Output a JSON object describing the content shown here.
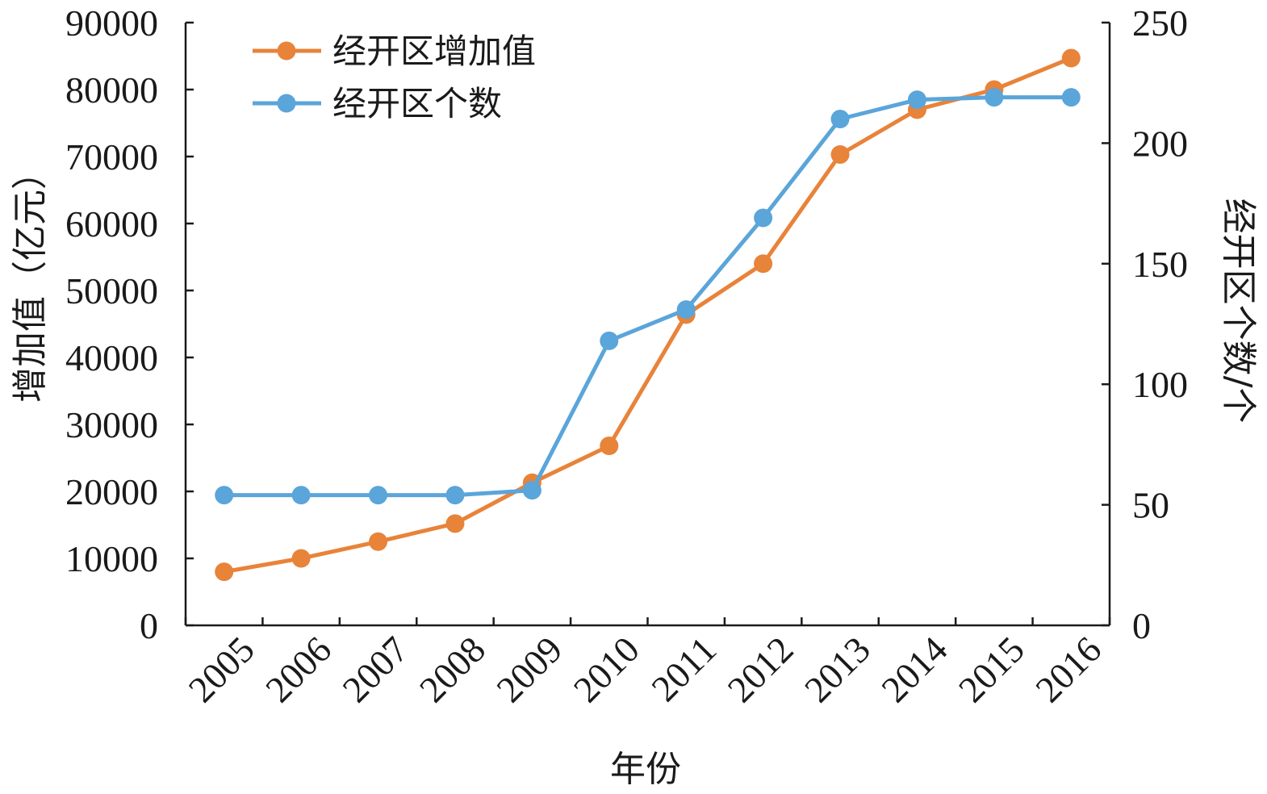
{
  "chart_data": {
    "type": "line",
    "categories": [
      "2005",
      "2006",
      "2007",
      "2008",
      "2009",
      "2010",
      "2011",
      "2012",
      "2013",
      "2014",
      "2015",
      "2016"
    ],
    "series": [
      {
        "name": "经开区增加值",
        "axis": "left",
        "color": "#E8833A",
        "values": [
          8000,
          10000,
          12500,
          15200,
          21300,
          26800,
          46400,
          54000,
          70300,
          77000,
          80000,
          84700
        ]
      },
      {
        "name": "经开区个数",
        "axis": "right",
        "color": "#5AA5DA",
        "values": [
          54,
          54,
          54,
          54,
          56,
          118,
          131,
          169,
          210,
          218,
          219,
          219
        ]
      }
    ],
    "xlabel": "年份",
    "ylabel_left": "增加值（亿元）",
    "ylabel_right": "经开区个数/个",
    "ylim_left": [
      0,
      90000
    ],
    "ylim_right": [
      0,
      250
    ],
    "yticks_left": [
      "0",
      "10000",
      "20000",
      "30000",
      "40000",
      "50000",
      "60000",
      "70000",
      "80000",
      "90000"
    ],
    "yticks_right": [
      "0",
      "50",
      "100",
      "150",
      "200",
      "250"
    ],
    "legend_position": "top-left",
    "grid": false
  }
}
